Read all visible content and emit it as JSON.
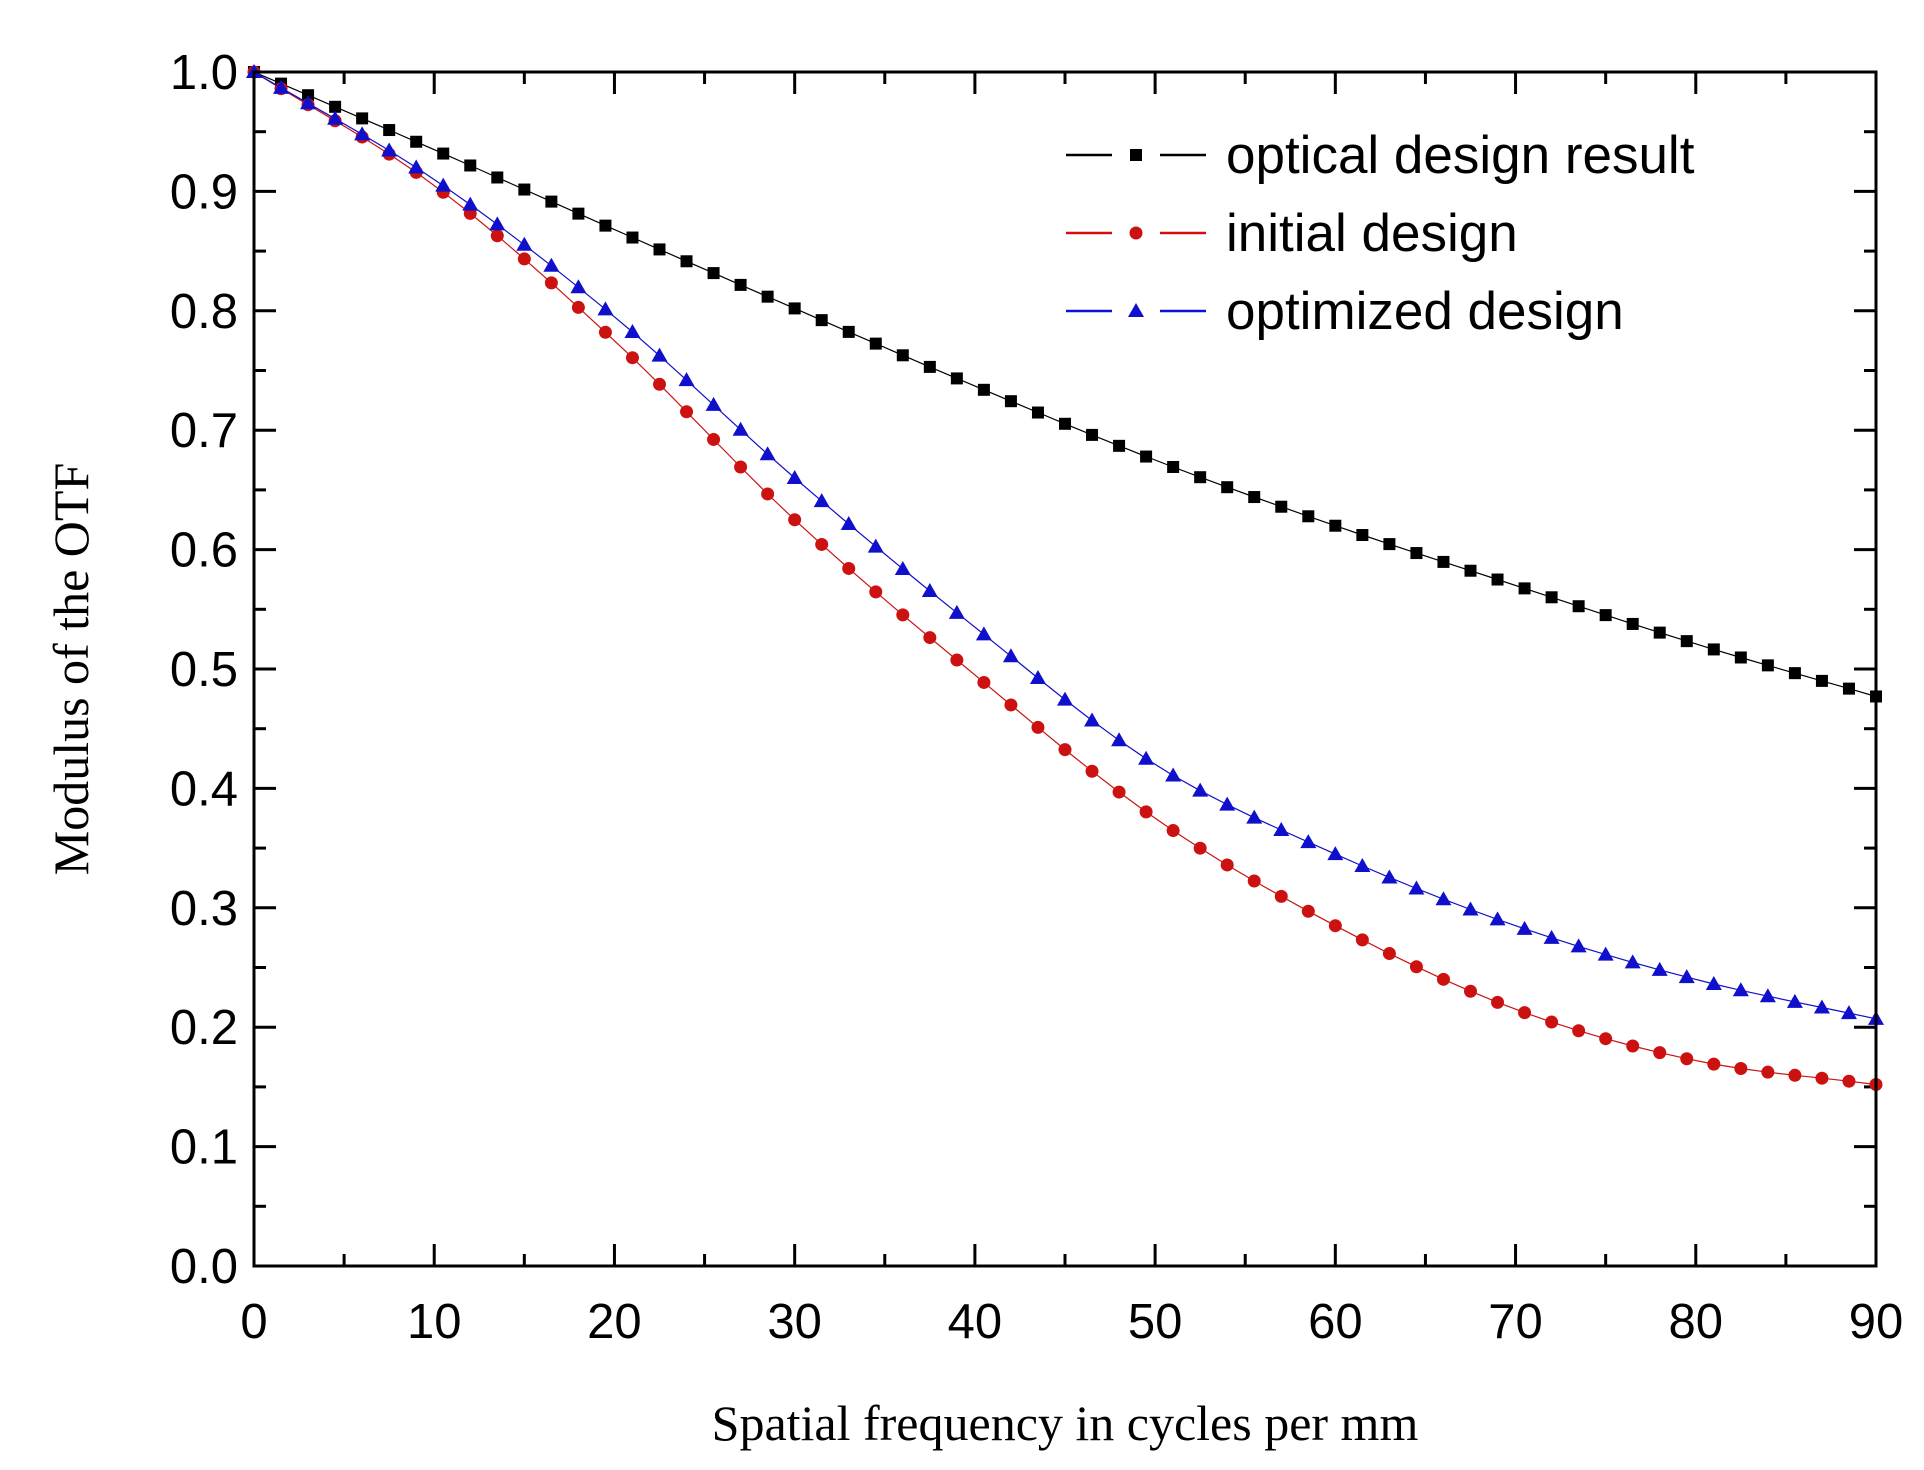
{
  "chart_data": {
    "type": "scatter",
    "title": "",
    "xlabel": "Spatial frequency in cycles per mm",
    "ylabel": "Modulus of the OTF",
    "xlim": [
      0,
      90
    ],
    "ylim": [
      0,
      1.0
    ],
    "x_ticks": [
      "0",
      "10",
      "20",
      "30",
      "40",
      "50",
      "60",
      "70",
      "80",
      "90"
    ],
    "y_ticks": [
      "0.0",
      "0.1",
      "0.2",
      "0.3",
      "0.4",
      "0.5",
      "0.6",
      "0.7",
      "0.8",
      "0.9",
      "1.0"
    ],
    "legend_position": "top-right",
    "x_step": 1.5,
    "series": [
      {
        "name": "optical design result",
        "marker": "square",
        "color": "#000000",
        "anchors_x": [
          0,
          10,
          20,
          30,
          40,
          50,
          60,
          70,
          80,
          90
        ],
        "anchors_y": [
          1.0,
          0.935,
          0.868,
          0.802,
          0.737,
          0.675,
          0.62,
          0.57,
          0.521,
          0.477
        ]
      },
      {
        "name": "initial design",
        "marker": "circle",
        "color": "#cc1111",
        "anchors_x": [
          0,
          10,
          20,
          30,
          40,
          50,
          60,
          70,
          80,
          90
        ],
        "anchors_y": [
          1.0,
          0.905,
          0.775,
          0.625,
          0.495,
          0.375,
          0.285,
          0.215,
          0.172,
          0.152
        ]
      },
      {
        "name": "optimized design",
        "marker": "triangle",
        "color": "#1010cc",
        "anchors_x": [
          0,
          10,
          20,
          30,
          40,
          50,
          60,
          70,
          80,
          90
        ],
        "anchors_y": [
          1.0,
          0.91,
          0.795,
          0.66,
          0.535,
          0.42,
          0.345,
          0.285,
          0.24,
          0.207
        ]
      }
    ]
  }
}
